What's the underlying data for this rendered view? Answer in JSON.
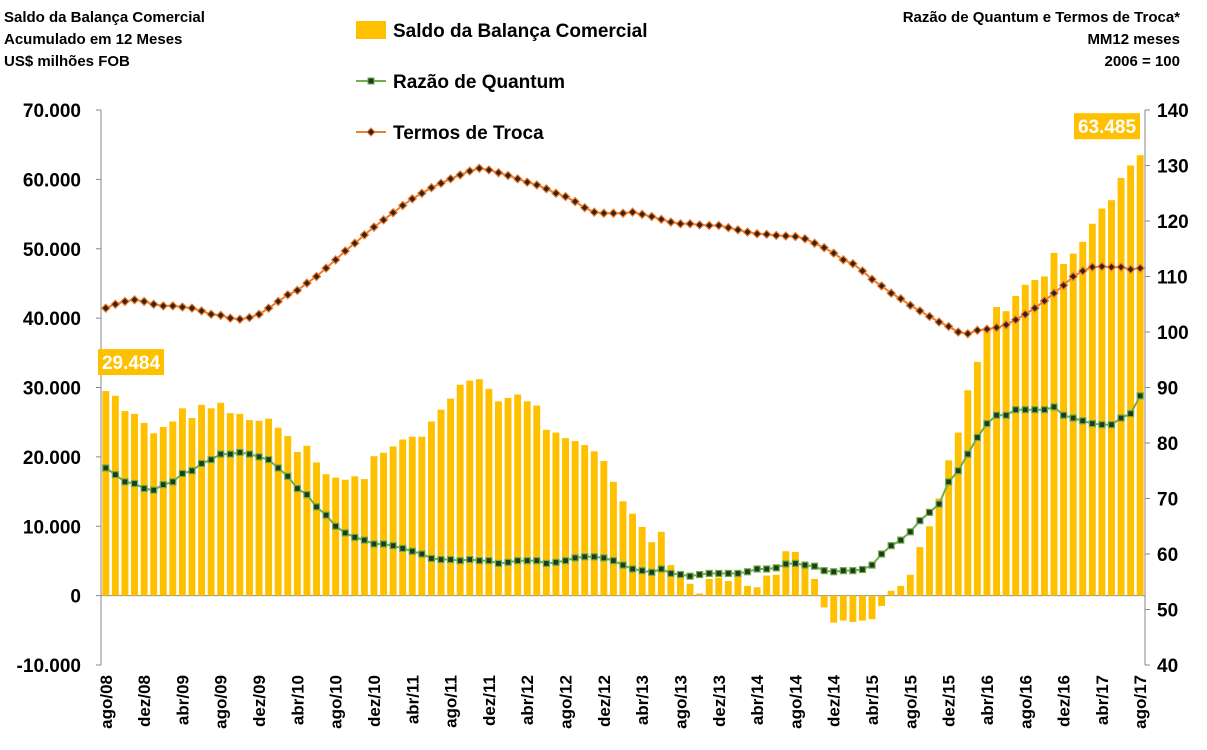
{
  "chart_data": {
    "type": "bar_line",
    "title_left": [
      "Saldo da Balança Comercial",
      "Acumulado em 12 Meses",
      "US$ milhões FOB"
    ],
    "title_right": [
      "Razão de Quantum e Termos de Troca*",
      "MM12 meses",
      "2006 = 100"
    ],
    "categories": [
      "ago/08",
      null,
      null,
      null,
      "dez/08",
      null,
      null,
      null,
      "abr/09",
      null,
      null,
      null,
      "ago/09",
      null,
      null,
      null,
      "dez/09",
      null,
      null,
      null,
      "abr/10",
      null,
      null,
      null,
      "ago/10",
      null,
      null,
      null,
      "dez/10",
      null,
      null,
      null,
      "abr/11",
      null,
      null,
      null,
      "ago/11",
      null,
      null,
      null,
      "dez/11",
      null,
      null,
      null,
      "abr/12",
      null,
      null,
      null,
      "ago/12",
      null,
      null,
      null,
      "dez/12",
      null,
      null,
      null,
      "abr/13",
      null,
      null,
      null,
      "ago/13",
      null,
      null,
      null,
      "dez/13",
      null,
      null,
      null,
      "abr/14",
      null,
      null,
      null,
      "ago/14",
      null,
      null,
      null,
      "dez/14",
      null,
      null,
      null,
      "abr/15",
      null,
      null,
      null,
      "ago/15",
      null,
      null,
      null,
      "dez/15",
      null,
      null,
      null,
      "abr/16",
      null,
      null,
      null,
      "ago/16",
      null,
      null,
      null,
      "dez/16",
      null,
      null,
      null,
      "abr/17",
      null,
      null,
      null,
      "ago/17"
    ],
    "series": [
      {
        "name": "Saldo da Balança Comercial",
        "color": "#FFC000",
        "kind": "bar",
        "values": [
          29484,
          28800,
          26600,
          26200,
          24900,
          23400,
          24300,
          25100,
          27000,
          25600,
          27500,
          27000,
          27800,
          26300,
          26200,
          25300,
          25200,
          25500,
          24200,
          23000,
          20700,
          21600,
          19200,
          17500,
          17000,
          16700,
          17200,
          16800,
          20100,
          20600,
          21500,
          22500,
          22900,
          22900,
          25100,
          26800,
          28400,
          30400,
          31000,
          31200,
          29800,
          28000,
          28500,
          29000,
          28000,
          27400,
          23900,
          23500,
          22700,
          22300,
          21700,
          20800,
          19400,
          16400,
          13600,
          11800,
          9900,
          7700,
          9200,
          4400,
          3000,
          1700,
          300,
          2400,
          2600,
          2100,
          2700,
          1400,
          1200,
          2900,
          3000,
          6400,
          6300,
          4000,
          2400,
          -1700,
          -3900,
          -3600,
          -3800,
          -3600,
          -3400,
          -1500,
          700,
          1400,
          3000,
          7000,
          10000,
          14000,
          19500,
          23500,
          29600,
          33700,
          38500,
          41600,
          41000,
          43200,
          44800,
          45500,
          46000,
          49400,
          47800,
          49300,
          51000,
          53600,
          55800,
          57000,
          60200,
          62000,
          63485
        ],
        "value_labels": [
          "29.484",
          null,
          null,
          null,
          null,
          null,
          null,
          null,
          null,
          null,
          null,
          null,
          null,
          null,
          null,
          null,
          null,
          null,
          null,
          null,
          null,
          null,
          null,
          null,
          null,
          null,
          null,
          null,
          null,
          null,
          null,
          null,
          null,
          null,
          null,
          null,
          null,
          null,
          null,
          null,
          null,
          null,
          null,
          null,
          null,
          null,
          null,
          null,
          null,
          null,
          null,
          null,
          null,
          null,
          null,
          null,
          null,
          null,
          null,
          null,
          null,
          null,
          null,
          null,
          null,
          null,
          null,
          null,
          null,
          null,
          null,
          null,
          null,
          null,
          null,
          null,
          null,
          null,
          null,
          null,
          null,
          null,
          null,
          null,
          null,
          null,
          null,
          null,
          null,
          null,
          null,
          null,
          null,
          null,
          null,
          null,
          null,
          null,
          null,
          null,
          null,
          null,
          null,
          null,
          null,
          null,
          null,
          null,
          "63.485"
        ]
      },
      {
        "name": "Razão de Quantum",
        "color": "#70AD47",
        "kind": "line",
        "marker": "square",
        "axis": "y2",
        "values": [
          75.5,
          74.3,
          73.0,
          72.7,
          71.8,
          71.5,
          72.5,
          73.0,
          74.5,
          75.0,
          76.3,
          77.0,
          78.0,
          78.0,
          78.3,
          78.0,
          77.5,
          77.0,
          75.5,
          74.0,
          71.8,
          70.7,
          68.5,
          67.0,
          65.0,
          63.8,
          63.0,
          62.5,
          61.8,
          61.8,
          61.5,
          61.0,
          60.5,
          60.0,
          59.2,
          59.0,
          59.0,
          58.8,
          59.0,
          58.8,
          58.8,
          58.3,
          58.5,
          58.8,
          58.8,
          58.8,
          58.3,
          58.5,
          58.8,
          59.3,
          59.5,
          59.5,
          59.3,
          58.8,
          58.0,
          57.3,
          57.0,
          56.7,
          57.3,
          56.5,
          56.3,
          56.0,
          56.3,
          56.5,
          56.5,
          56.5,
          56.5,
          56.8,
          57.3,
          57.3,
          57.5,
          58.2,
          58.3,
          58.0,
          57.8,
          57.0,
          56.8,
          57.0,
          57.0,
          57.2,
          58.0,
          60.0,
          61.5,
          62.5,
          64.0,
          66.0,
          67.5,
          69.0,
          73.0,
          75.0,
          78.0,
          81.0,
          83.5,
          85.0,
          85.0,
          86.0,
          86.0,
          86.0,
          86.0,
          86.5,
          85.0,
          84.5,
          84.0,
          83.5,
          83.3,
          83.3,
          84.5,
          85.3,
          88.5
        ]
      },
      {
        "name": "Termos de Troca",
        "color": "#ED7D31",
        "kind": "line",
        "marker": "diamond",
        "axis": "y2",
        "values": [
          104.3,
          105.0,
          105.5,
          105.8,
          105.5,
          105.0,
          104.7,
          104.7,
          104.5,
          104.3,
          103.8,
          103.2,
          103.0,
          102.5,
          102.3,
          102.6,
          103.2,
          104.3,
          105.5,
          106.7,
          107.5,
          108.8,
          110.0,
          111.5,
          113.0,
          114.6,
          116.0,
          117.5,
          118.9,
          120.2,
          121.5,
          122.8,
          124.0,
          125.0,
          126.0,
          126.8,
          127.6,
          128.3,
          129.0,
          129.5,
          129.2,
          128.7,
          128.2,
          127.6,
          127.0,
          126.5,
          125.8,
          125.0,
          124.4,
          123.5,
          122.4,
          121.6,
          121.4,
          121.4,
          121.4,
          121.6,
          121.2,
          120.8,
          120.3,
          119.8,
          119.5,
          119.5,
          119.3,
          119.2,
          119.2,
          118.8,
          118.4,
          118.0,
          117.7,
          117.6,
          117.4,
          117.3,
          117.2,
          116.8,
          116.0,
          115.2,
          114.2,
          113.0,
          112.3,
          111.0,
          109.5,
          108.3,
          107.0,
          106.0,
          104.8,
          103.8,
          102.8,
          101.8,
          101.0,
          100.0,
          99.7,
          100.3,
          100.5,
          100.8,
          101.3,
          102.2,
          103.2,
          104.3,
          105.6,
          107.0,
          108.4,
          110.0,
          111.0,
          111.7,
          111.8,
          111.7,
          111.7,
          111.3,
          111.5
        ]
      }
    ],
    "ylim": [
      -10000,
      70000
    ],
    "yticks": [
      {
        "value": -10000,
        "label": "-10.000"
      },
      {
        "value": 0,
        "label": "0"
      },
      {
        "value": 10000,
        "label": "10.000"
      },
      {
        "value": 20000,
        "label": "20.000"
      },
      {
        "value": 30000,
        "label": "30.000"
      },
      {
        "value": 40000,
        "label": "40.000"
      },
      {
        "value": 50000,
        "label": "50.000"
      },
      {
        "value": 60000,
        "label": "60.000"
      },
      {
        "value": 70000,
        "label": "70.000"
      }
    ],
    "y2lim": [
      40,
      140
    ],
    "y2ticks": [
      40,
      50,
      60,
      70,
      80,
      90,
      100,
      110,
      120,
      130,
      140
    ],
    "grid": false
  }
}
